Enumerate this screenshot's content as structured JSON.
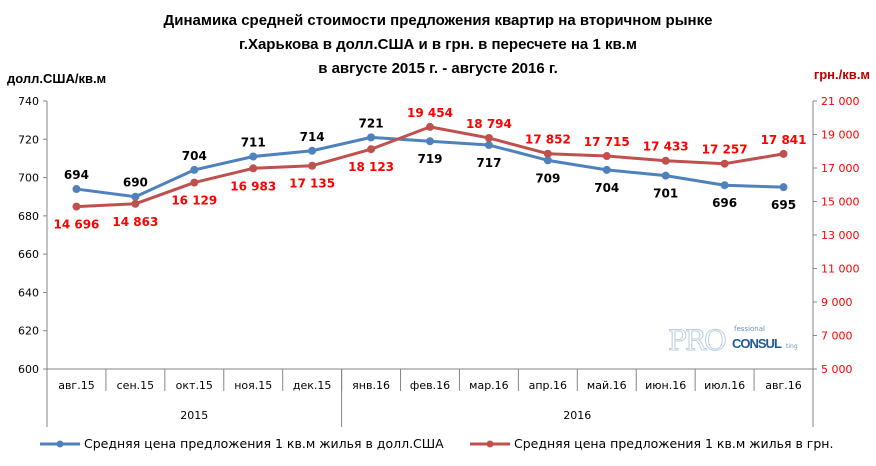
{
  "chart_data": {
    "type": "line",
    "title": [
      "Динамика средней стоимости предложения квартир на вторичном рынке",
      "г.Харькова  в долл.США и в грн. в пересчете на 1 кв.м",
      "в августе 2015 г. - августе 2016  г."
    ],
    "ylabel": "долл.США/кв.м",
    "y2label": "грн./кв.м",
    "categories": [
      "авг.15",
      "сен.15",
      "окт.15",
      "ноя.15",
      "дек.15",
      "янв.16",
      "фев.16",
      "мар.16",
      "апр.16",
      "май.16",
      "июн.16",
      "июл.16",
      "авг.16"
    ],
    "year_groups": [
      {
        "label": "2015",
        "count": 5
      },
      {
        "label": "2016",
        "count": 8
      }
    ],
    "ylim": [
      600,
      740
    ],
    "yticks": [
      600,
      620,
      640,
      660,
      680,
      700,
      720,
      740
    ],
    "y2lim": [
      5000,
      21000
    ],
    "y2ticks": [
      "5 000",
      "7 000",
      "9 000",
      "11 000",
      "13 000",
      "15 000",
      "17 000",
      "19 000",
      "21 000"
    ],
    "series": [
      {
        "name": "Средняя цена предложения 1 кв.м жилья в долл.США",
        "axis": "left",
        "color": "#4F81BD",
        "values": [
          694,
          690,
          704,
          711,
          714,
          721,
          719,
          717,
          709,
          704,
          701,
          696,
          695
        ],
        "labels": [
          "694",
          "690",
          "704",
          "711",
          "714",
          "721",
          "719",
          "717",
          "709",
          "704",
          "701",
          "696",
          "695"
        ]
      },
      {
        "name": "Средняя цена предложения 1 кв.м жилья в грн.",
        "axis": "right",
        "color": "#C0504D",
        "values": [
          14696,
          14863,
          16129,
          16983,
          17135,
          18123,
          19454,
          18794,
          17852,
          17715,
          17433,
          17257,
          17841
        ],
        "labels": [
          "14 696",
          "14 863",
          "16 129",
          "16 983",
          "17 135",
          "18 123",
          "19 454",
          "18 794",
          "17 852",
          "17 715",
          "17 433",
          "17 257",
          "17 841"
        ]
      }
    ],
    "legend_position": "bottom",
    "grid": false
  },
  "logo": {
    "main": "PRO",
    "sub1": "fessional",
    "sub2": "CONSUL",
    "sub3": "ting"
  }
}
